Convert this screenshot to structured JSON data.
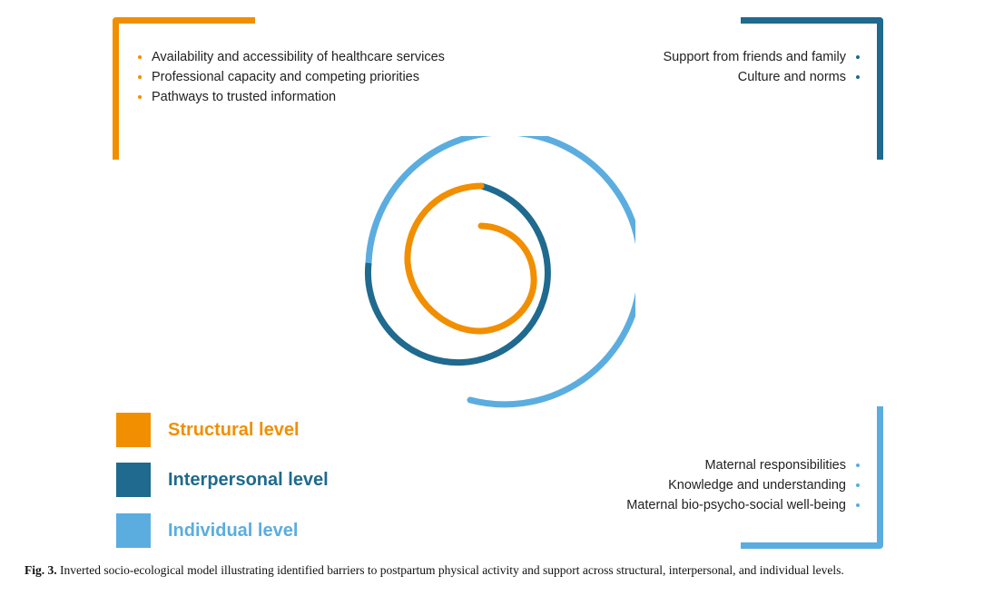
{
  "colors": {
    "structural": "#F18F01",
    "interpersonal": "#1F6A8E",
    "individual": "#5BADDF"
  },
  "structural": {
    "items": [
      "Availability and accessibility of healthcare services",
      "Professional capacity and competing priorities",
      "Pathways to trusted information"
    ]
  },
  "interpersonal": {
    "items": [
      "Support from friends and family",
      "Culture and norms"
    ]
  },
  "individual": {
    "items": [
      "Maternal responsibilities",
      "Knowledge and understanding",
      "Maternal bio-psycho-social well-being"
    ]
  },
  "legend": [
    {
      "key": "structural",
      "label": "Structural level"
    },
    {
      "key": "interpersonal",
      "label": "Interpersonal level"
    },
    {
      "key": "individual",
      "label": "Individual level"
    }
  ],
  "caption": {
    "label": "Fig. 3.",
    "text": "Inverted socio-ecological model illustrating identified barriers to postpartum physical activity and support across structural, interpersonal, and individual levels."
  }
}
